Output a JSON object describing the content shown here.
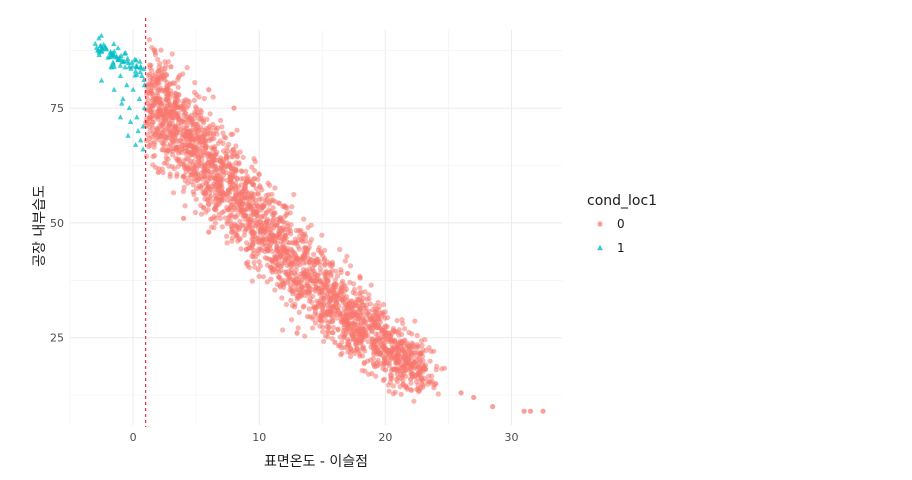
{
  "chart_data": {
    "type": "scatter",
    "xlabel": "표면온도 - 이슬점",
    "ylabel": "공장 내부습도",
    "xlim": [
      -5,
      34
    ],
    "ylim": [
      6,
      92
    ],
    "x_ticks": [
      0,
      10,
      20,
      30
    ],
    "y_ticks": [
      25,
      50,
      75
    ],
    "grid": true,
    "reference_line": {
      "x": 1,
      "color": "#e6001a",
      "style": "dashed"
    },
    "legend": {
      "title": "cond_loc1",
      "placement": "right",
      "entries": [
        {
          "label": "0",
          "color": "#F8766D",
          "shape": "circle"
        },
        {
          "label": "1",
          "color": "#00BFC4",
          "shape": "triangle"
        }
      ]
    },
    "series": [
      {
        "name": "0",
        "color": "#F8766D",
        "shape": "circle",
        "trend": [
          [
            1,
            78
          ],
          [
            3,
            72
          ],
          [
            5,
            66
          ],
          [
            7,
            60
          ],
          [
            9,
            53
          ],
          [
            11,
            47
          ],
          [
            13,
            41
          ],
          [
            15,
            35
          ],
          [
            17,
            30
          ],
          [
            19,
            26
          ],
          [
            21,
            21
          ],
          [
            23,
            17
          ]
        ],
        "points": [
          [
            2,
            83
          ],
          [
            3,
            84
          ],
          [
            6,
            79
          ],
          [
            8,
            75
          ],
          [
            2,
            61
          ],
          [
            4,
            51
          ],
          [
            6,
            48
          ],
          [
            17,
            39
          ],
          [
            18,
            38
          ],
          [
            13,
            26
          ],
          [
            16,
            24
          ],
          [
            20,
            18
          ],
          [
            22,
            16
          ],
          [
            24,
            15
          ],
          [
            26,
            13
          ],
          [
            27,
            12
          ],
          [
            28.5,
            10
          ],
          [
            31,
            9
          ],
          [
            31.5,
            9
          ],
          [
            32.5,
            9
          ]
        ]
      },
      {
        "name": "1",
        "color": "#00BFC4",
        "shape": "triangle",
        "points": [
          [
            -3,
            89
          ],
          [
            -2.6,
            88.5
          ],
          [
            -2.2,
            88
          ],
          [
            -1.8,
            87
          ],
          [
            -1.3,
            86
          ],
          [
            -0.8,
            85
          ],
          [
            -0.3,
            84
          ],
          [
            0.2,
            83
          ],
          [
            0.7,
            82
          ],
          [
            -2,
            86
          ],
          [
            -1.5,
            84
          ],
          [
            -1,
            82
          ],
          [
            -0.5,
            80
          ],
          [
            0,
            79
          ],
          [
            0.5,
            77
          ],
          [
            0.9,
            75
          ],
          [
            -2.5,
            81
          ],
          [
            -1.5,
            79
          ],
          [
            -0.8,
            77
          ],
          [
            -0.3,
            75
          ],
          [
            0.3,
            73
          ],
          [
            0.8,
            71
          ],
          [
            -1,
            73
          ],
          [
            -0.2,
            72
          ],
          [
            0.4,
            70
          ],
          [
            0.6,
            68
          ],
          [
            0.8,
            66
          ],
          [
            -0.4,
            69
          ],
          [
            0.2,
            67
          ],
          [
            -0.9,
            76
          ],
          [
            -0.6,
            87
          ],
          [
            0.9,
            80
          ],
          [
            0.6,
            84
          ]
        ]
      }
    ]
  }
}
